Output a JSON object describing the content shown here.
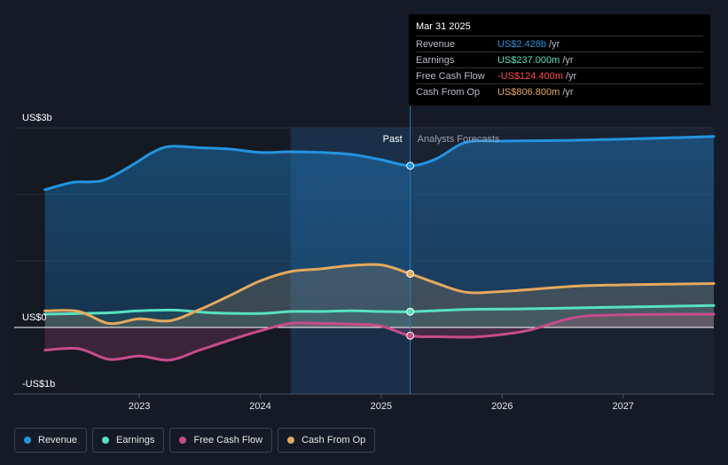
{
  "chart_data": {
    "type": "area",
    "y_unit": "US$ billions",
    "ylim": [
      -1.0,
      3.0
    ],
    "xlim": [
      2022.2,
      2027.75
    ],
    "y_tick_labels": [
      {
        "value": 3.0,
        "label": "US$3b"
      },
      {
        "value": 0.0,
        "label": "US$0"
      },
      {
        "value": -1.0,
        "label": "-US$1b"
      }
    ],
    "gridlines": [
      3.0,
      2.0,
      1.0,
      -1.0
    ],
    "x_ticks": [
      {
        "value": 2023.0,
        "label": "2023"
      },
      {
        "value": 2024.0,
        "label": "2024"
      },
      {
        "value": 2025.0,
        "label": "2025"
      },
      {
        "value": 2026.0,
        "label": "2026"
      },
      {
        "value": 2027.0,
        "label": "2027"
      }
    ],
    "past_start": 2024.25,
    "divider_x": 2025.24,
    "past_label": "Past",
    "forecast_label": "Analysts Forecasts",
    "series": [
      {
        "name": "Revenue",
        "key": "revenue",
        "color": "#2394df",
        "area": true,
        "points": [
          [
            2022.22,
            2.07
          ],
          [
            2022.45,
            2.18
          ],
          [
            2022.7,
            2.21
          ],
          [
            2022.95,
            2.45
          ],
          [
            2023.1,
            2.62
          ],
          [
            2023.25,
            2.72
          ],
          [
            2023.5,
            2.7
          ],
          [
            2023.75,
            2.68
          ],
          [
            2024.0,
            2.63
          ],
          [
            2024.25,
            2.64
          ],
          [
            2024.5,
            2.63
          ],
          [
            2024.75,
            2.6
          ],
          [
            2025.0,
            2.52
          ],
          [
            2025.24,
            2.43
          ],
          [
            2025.45,
            2.53
          ],
          [
            2025.7,
            2.78
          ],
          [
            2026.0,
            2.8
          ],
          [
            2026.5,
            2.81
          ],
          [
            2027.0,
            2.83
          ],
          [
            2027.75,
            2.87
          ]
        ]
      },
      {
        "name": "Earnings",
        "key": "earnings",
        "color": "#58e1c1",
        "area": true,
        "points": [
          [
            2022.22,
            0.2
          ],
          [
            2022.5,
            0.21
          ],
          [
            2022.75,
            0.22
          ],
          [
            2023.0,
            0.25
          ],
          [
            2023.3,
            0.26
          ],
          [
            2023.6,
            0.22
          ],
          [
            2024.0,
            0.21
          ],
          [
            2024.25,
            0.24
          ],
          [
            2024.5,
            0.24
          ],
          [
            2024.75,
            0.25
          ],
          [
            2025.0,
            0.24
          ],
          [
            2025.24,
            0.237
          ],
          [
            2025.7,
            0.27
          ],
          [
            2026.2,
            0.28
          ],
          [
            2026.8,
            0.3
          ],
          [
            2027.75,
            0.33
          ]
        ]
      },
      {
        "name": "Free Cash Flow",
        "key": "fcf",
        "color": "#c84c8c",
        "area": true,
        "points": [
          [
            2022.22,
            -0.34
          ],
          [
            2022.5,
            -0.32
          ],
          [
            2022.75,
            -0.48
          ],
          [
            2023.0,
            -0.43
          ],
          [
            2023.25,
            -0.49
          ],
          [
            2023.5,
            -0.34
          ],
          [
            2023.8,
            -0.16
          ],
          [
            2024.0,
            -0.05
          ],
          [
            2024.25,
            0.06
          ],
          [
            2024.5,
            0.06
          ],
          [
            2024.75,
            0.05
          ],
          [
            2025.0,
            0.02
          ],
          [
            2025.24,
            -0.124
          ],
          [
            2025.5,
            -0.14
          ],
          [
            2025.8,
            -0.14
          ],
          [
            2026.2,
            -0.05
          ],
          [
            2026.6,
            0.15
          ],
          [
            2027.0,
            0.19
          ],
          [
            2027.75,
            0.2
          ]
        ]
      },
      {
        "name": "Cash From Op",
        "key": "cfo",
        "color": "#e5a95d",
        "area": true,
        "points": [
          [
            2022.22,
            0.25
          ],
          [
            2022.5,
            0.24
          ],
          [
            2022.75,
            0.06
          ],
          [
            2023.0,
            0.13
          ],
          [
            2023.25,
            0.1
          ],
          [
            2023.5,
            0.27
          ],
          [
            2023.75,
            0.48
          ],
          [
            2024.0,
            0.7
          ],
          [
            2024.25,
            0.84
          ],
          [
            2024.5,
            0.88
          ],
          [
            2024.75,
            0.93
          ],
          [
            2025.0,
            0.94
          ],
          [
            2025.24,
            0.807
          ],
          [
            2025.45,
            0.67
          ],
          [
            2025.7,
            0.53
          ],
          [
            2026.0,
            0.54
          ],
          [
            2026.6,
            0.62
          ],
          [
            2027.0,
            0.64
          ],
          [
            2027.75,
            0.66
          ]
        ]
      }
    ]
  },
  "tooltip": {
    "date": "Mar 31 2025",
    "rows": [
      {
        "name": "Revenue",
        "value": "US$2.428b",
        "unit": "/yr",
        "color": "#2394df"
      },
      {
        "name": "Earnings",
        "value": "US$237.000m",
        "unit": "/yr",
        "color": "#58e1c1"
      },
      {
        "name": "Free Cash Flow",
        "value": "-US$124.400m",
        "unit": "/yr",
        "color": "#ff4d4d"
      },
      {
        "name": "Cash From Op",
        "value": "US$806.800m",
        "unit": "/yr",
        "color": "#e5a95d"
      }
    ]
  },
  "legend": [
    {
      "label": "Revenue",
      "color": "#2394df"
    },
    {
      "label": "Earnings",
      "color": "#58e1c1"
    },
    {
      "label": "Free Cash Flow",
      "color": "#c84c8c"
    },
    {
      "label": "Cash From Op",
      "color": "#e5a95d"
    }
  ]
}
